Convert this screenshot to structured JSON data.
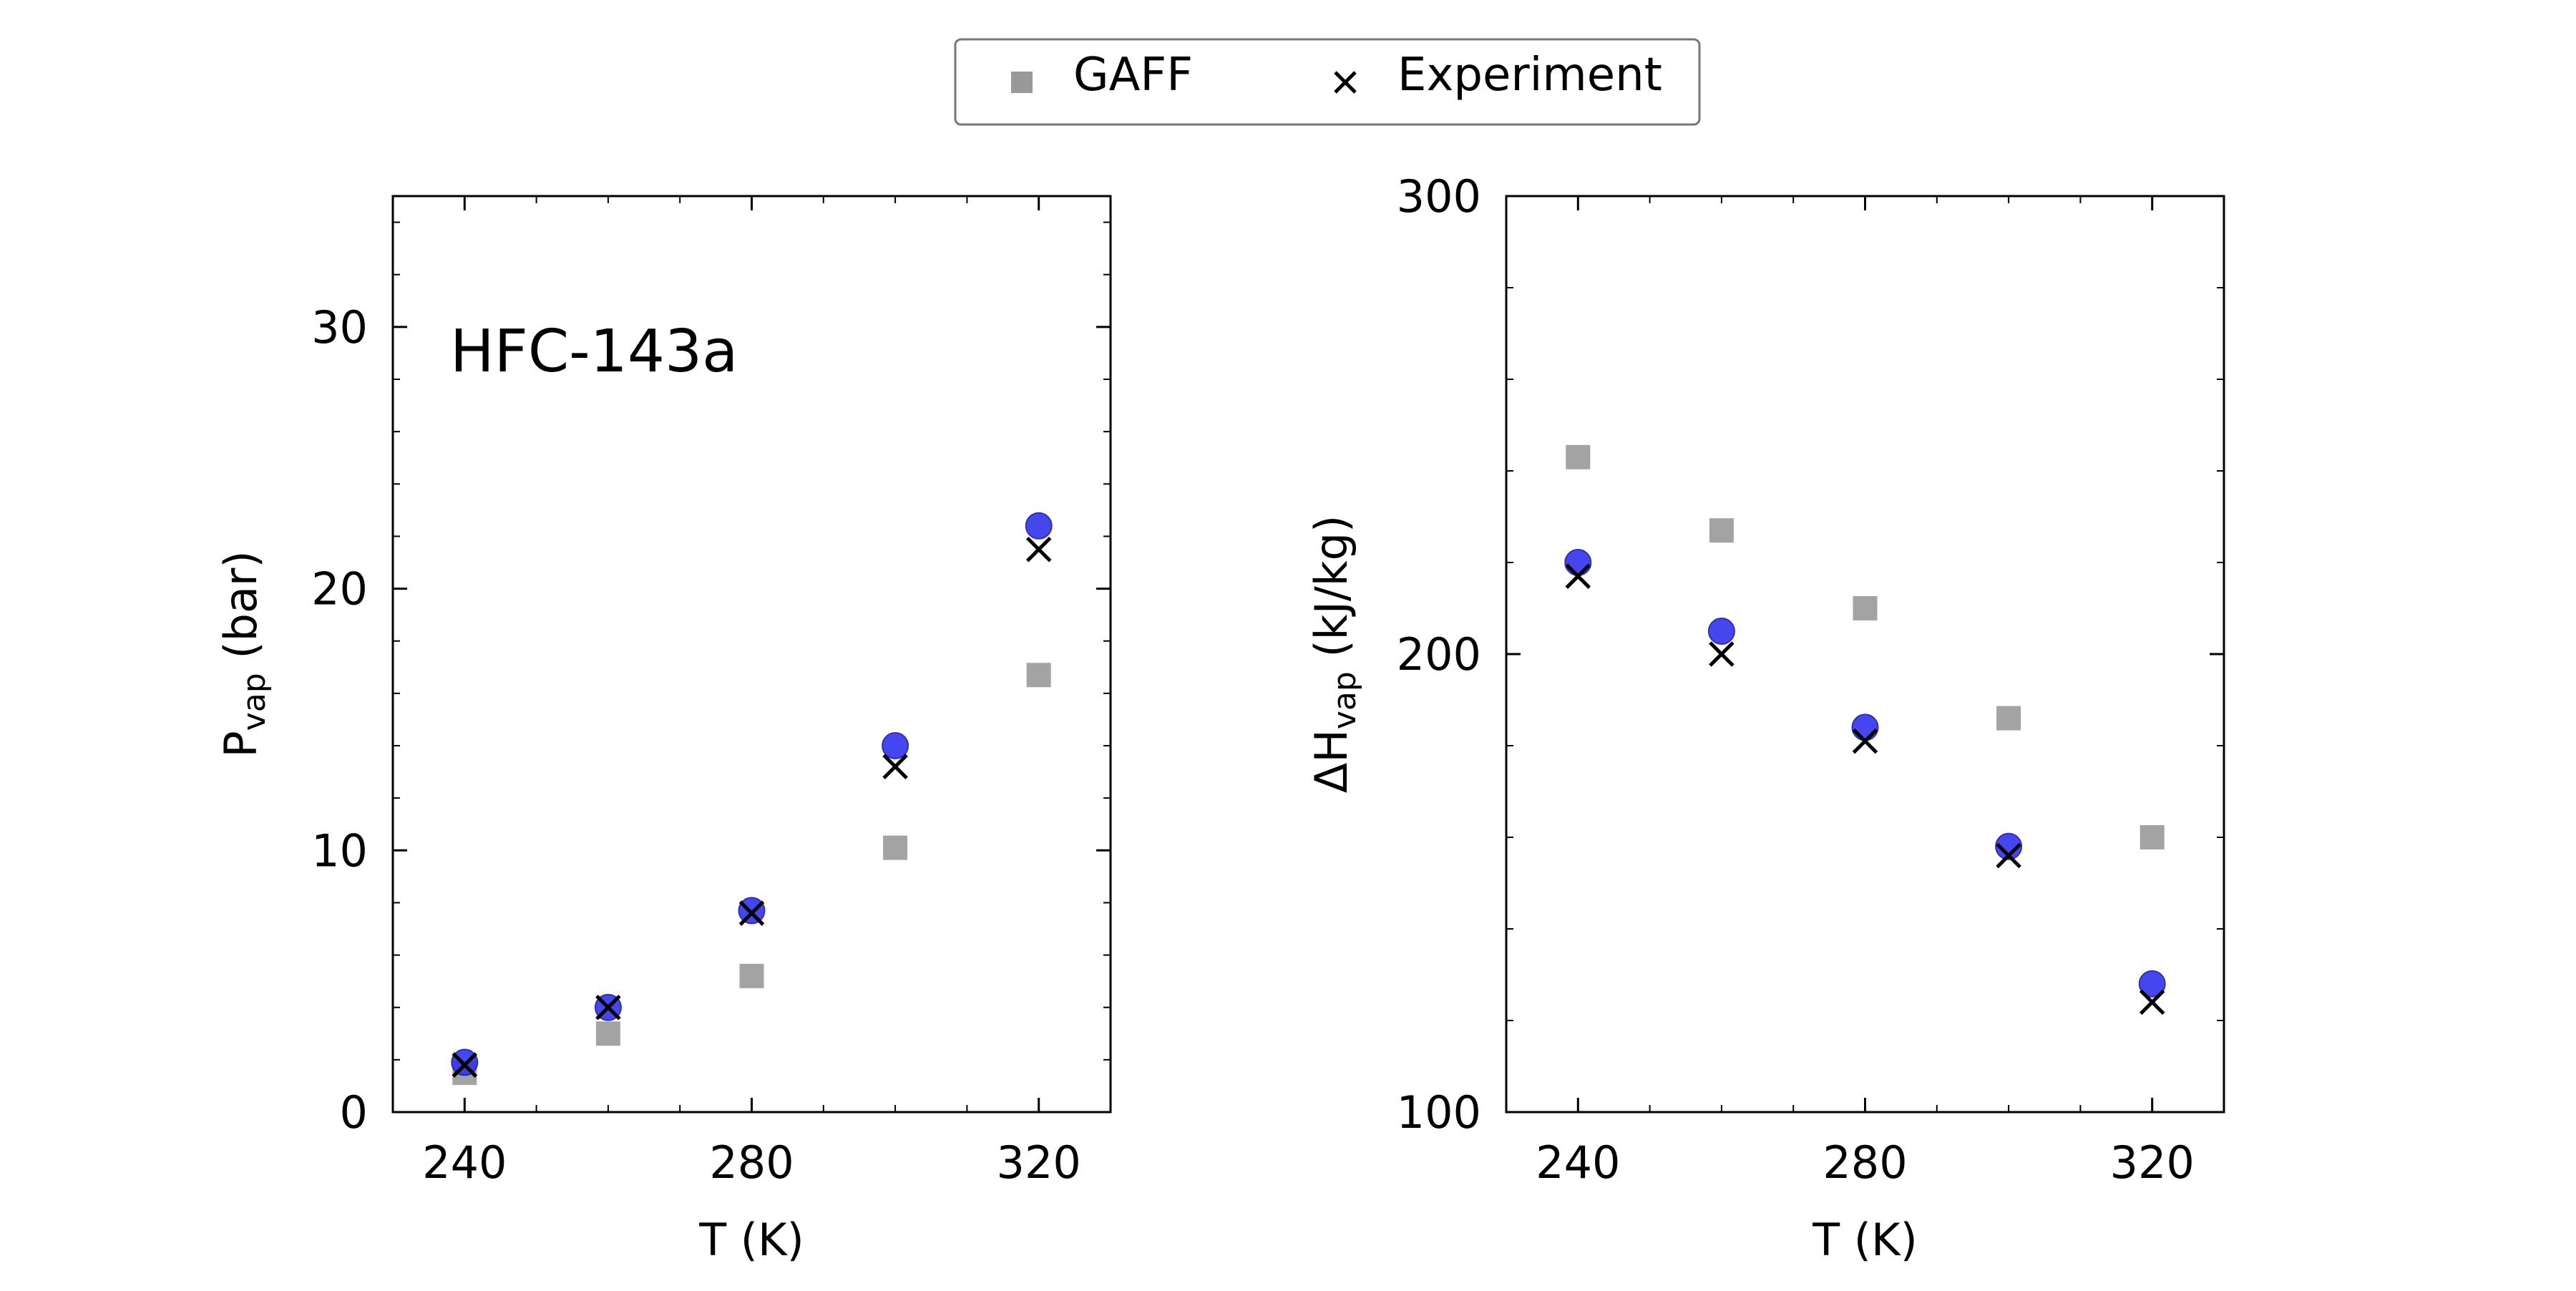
{
  "legend": {
    "entries": [
      {
        "label": "GAFF",
        "marker": "square",
        "color": "#999999"
      },
      {
        "label": "Experiment",
        "marker": "x",
        "color": "#000000"
      }
    ]
  },
  "chart_data": [
    {
      "type": "scatter",
      "annotation": "HFC-143a",
      "xlabel": "T (K)",
      "ylabel": {
        "main": "P",
        "sub": "vap",
        "unit": " (bar)"
      },
      "xlim": [
        230,
        330
      ],
      "ylim": [
        0,
        35
      ],
      "xticks": [
        240,
        280,
        320
      ],
      "yticks": [
        0,
        10,
        20,
        30
      ],
      "x_minor": 10,
      "y_minor": 2,
      "series": [
        {
          "name": "GAFF",
          "marker": "square",
          "color": "#999999",
          "x": [
            240,
            260,
            280,
            300,
            320
          ],
          "y": [
            1.5,
            3.0,
            5.2,
            10.1,
            16.7
          ]
        },
        {
          "marker": "circle",
          "color": "#3333ee",
          "x": [
            240,
            260,
            280,
            300,
            320
          ],
          "y": [
            1.9,
            4.0,
            7.7,
            14.0,
            22.4
          ]
        },
        {
          "name": "Experiment",
          "marker": "x",
          "color": "#000000",
          "x": [
            240,
            260,
            280,
            300,
            320
          ],
          "y": [
            1.8,
            4.0,
            7.6,
            13.2,
            21.5
          ]
        }
      ]
    },
    {
      "type": "scatter",
      "xlabel": "T (K)",
      "ylabel": {
        "main": "ΔH",
        "sub": "vap",
        "unit": " (kJ/kg)"
      },
      "xlim": [
        230,
        330
      ],
      "ylim": [
        100,
        300
      ],
      "xticks": [
        240,
        280,
        320
      ],
      "yticks": [
        100,
        200,
        300
      ],
      "x_minor": 10,
      "y_minor": 20,
      "series": [
        {
          "name": "GAFF",
          "marker": "square",
          "color": "#999999",
          "x": [
            240,
            260,
            280,
            300,
            320
          ],
          "y": [
            243,
            227,
            210,
            186,
            160
          ]
        },
        {
          "marker": "circle",
          "color": "#3333ee",
          "x": [
            240,
            260,
            280,
            300,
            320
          ],
          "y": [
            220,
            205,
            184,
            158,
            128
          ]
        },
        {
          "name": "Experiment",
          "marker": "x",
          "color": "#000000",
          "x": [
            240,
            260,
            280,
            300,
            320
          ],
          "y": [
            217,
            200,
            181,
            156,
            124
          ]
        }
      ]
    }
  ]
}
